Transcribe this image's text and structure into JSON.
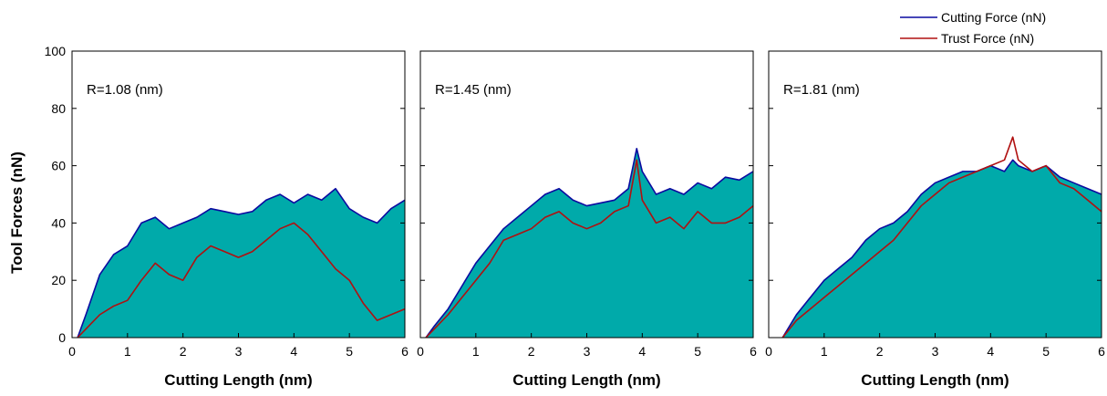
{
  "figure": {
    "ylabel": "Tool Forces (nN)",
    "legend": {
      "placement": "top-right",
      "entries": [
        {
          "label": "Cutting Force (nN)",
          "color": "#0a0aa0"
        },
        {
          "label": "Trust Force (nN)",
          "color": "#b01010"
        }
      ]
    },
    "fill_color": "#00aaaa"
  },
  "chart_data": [
    {
      "type": "line",
      "annotation": "R=1.08 (nm)",
      "xlabel": "Cutting Length (nm)",
      "xlim": [
        0,
        6
      ],
      "ylim": [
        0,
        100
      ],
      "xticks": [
        "0",
        "1",
        "2",
        "3",
        "4",
        "5",
        "6"
      ],
      "yticks": [
        "0",
        "20",
        "40",
        "60",
        "80",
        "100"
      ],
      "x": [
        0.1,
        0.25,
        0.5,
        0.75,
        1.0,
        1.25,
        1.5,
        1.75,
        2.0,
        2.25,
        2.5,
        2.75,
        3.0,
        3.25,
        3.5,
        3.75,
        4.0,
        4.25,
        4.5,
        4.75,
        5.0,
        5.25,
        5.5,
        5.75,
        6.0
      ],
      "series": [
        {
          "name": "Cutting Force (nN)",
          "values": [
            0,
            8,
            22,
            29,
            32,
            40,
            42,
            38,
            40,
            42,
            45,
            44,
            43,
            44,
            48,
            50,
            47,
            50,
            48,
            52,
            45,
            42,
            40,
            45,
            48
          ]
        },
        {
          "name": "Trust Force (nN)",
          "values": [
            0,
            3,
            8,
            11,
            13,
            20,
            26,
            22,
            20,
            28,
            32,
            30,
            28,
            30,
            34,
            38,
            40,
            36,
            30,
            24,
            20,
            12,
            6,
            8,
            10
          ]
        }
      ]
    },
    {
      "type": "line",
      "annotation": "R=1.45 (nm)",
      "xlabel": "Cutting Length (nm)",
      "xlim": [
        0,
        6
      ],
      "ylim": [
        0,
        100
      ],
      "xticks": [
        "0",
        "1",
        "2",
        "3",
        "4",
        "5",
        "6"
      ],
      "yticks": [],
      "x": [
        0.1,
        0.25,
        0.5,
        0.75,
        1.0,
        1.25,
        1.5,
        1.75,
        2.0,
        2.25,
        2.5,
        2.75,
        3.0,
        3.25,
        3.5,
        3.75,
        3.9,
        4.0,
        4.25,
        4.5,
        4.75,
        5.0,
        5.25,
        5.5,
        5.75,
        6.0
      ],
      "series": [
        {
          "name": "Cutting Force (nN)",
          "values": [
            0,
            4,
            10,
            18,
            26,
            32,
            38,
            42,
            46,
            50,
            52,
            48,
            46,
            47,
            48,
            52,
            66,
            58,
            50,
            52,
            50,
            54,
            52,
            56,
            55,
            58
          ]
        },
        {
          "name": "Trust Force (nN)",
          "values": [
            0,
            3,
            8,
            14,
            20,
            26,
            34,
            36,
            38,
            42,
            44,
            40,
            38,
            40,
            44,
            46,
            62,
            48,
            40,
            42,
            38,
            44,
            40,
            40,
            42,
            46
          ]
        }
      ]
    },
    {
      "type": "line",
      "annotation": "R=1.81 (nm)",
      "xlabel": "Cutting Length (nm)",
      "xlim": [
        0,
        6
      ],
      "ylim": [
        0,
        100
      ],
      "xticks": [
        "0",
        "1",
        "2",
        "3",
        "4",
        "5",
        "6"
      ],
      "yticks": [],
      "x": [
        0.25,
        0.5,
        0.75,
        1.0,
        1.25,
        1.5,
        1.75,
        2.0,
        2.25,
        2.5,
        2.75,
        3.0,
        3.25,
        3.5,
        3.75,
        4.0,
        4.25,
        4.4,
        4.5,
        4.75,
        5.0,
        5.25,
        5.5,
        5.75,
        6.0
      ],
      "series": [
        {
          "name": "Cutting Force (nN)",
          "values": [
            0,
            8,
            14,
            20,
            24,
            28,
            34,
            38,
            40,
            44,
            50,
            54,
            56,
            58,
            58,
            60,
            58,
            62,
            60,
            58,
            60,
            56,
            54,
            52,
            50
          ]
        },
        {
          "name": "Trust Force (nN)",
          "values": [
            0,
            6,
            10,
            14,
            18,
            22,
            26,
            30,
            34,
            40,
            46,
            50,
            54,
            56,
            58,
            60,
            62,
            70,
            62,
            58,
            60,
            54,
            52,
            48,
            44
          ]
        }
      ]
    }
  ]
}
